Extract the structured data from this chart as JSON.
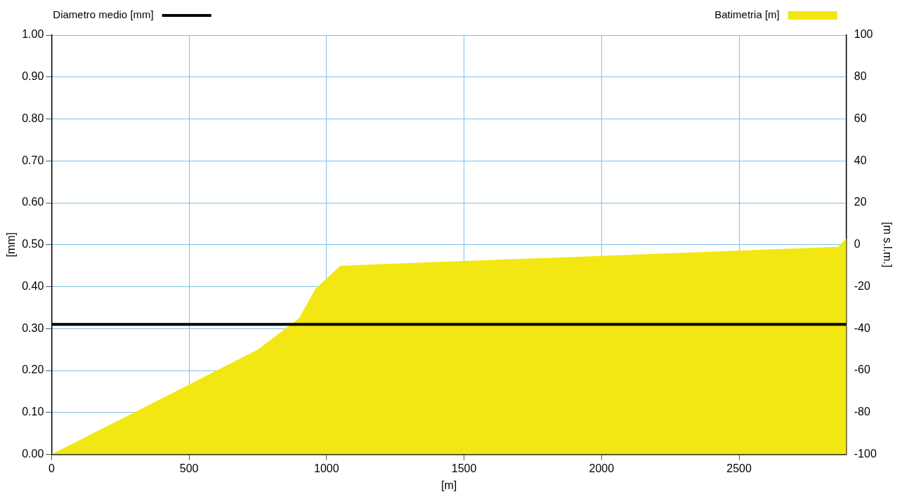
{
  "chart_data": {
    "type": "line",
    "xlabel": "[m]",
    "ylabel": "[mm]",
    "y2label": "[m s.l.m.]",
    "xlim": [
      0,
      2890
    ],
    "xticks": [
      0,
      500,
      1000,
      1500,
      2000,
      2500
    ],
    "ylim": [
      0,
      1
    ],
    "yticks": [
      {
        "value": 0,
        "label": "0.00"
      },
      {
        "value": 0.1,
        "label": "0.10"
      },
      {
        "value": 0.2,
        "label": "0.20"
      },
      {
        "value": 0.3,
        "label": "0.30"
      },
      {
        "value": 0.4,
        "label": "0.40"
      },
      {
        "value": 0.5,
        "label": "0.50"
      },
      {
        "value": 0.6,
        "label": "0.60"
      },
      {
        "value": 0.7,
        "label": "0.70"
      },
      {
        "value": 0.8,
        "label": "0.80"
      },
      {
        "value": 0.9,
        "label": "0.90"
      },
      {
        "value": 1,
        "label": "1.00"
      }
    ],
    "y2lim": [
      -100,
      100
    ],
    "y2ticks": [
      -100,
      -80,
      -60,
      -40,
      -20,
      0,
      20,
      40,
      60,
      80,
      100
    ],
    "grid": true,
    "legend": "top",
    "marker": "none",
    "series": [
      {
        "name": "Batimetria [m]",
        "type": "area",
        "axis": "y2",
        "color": "#f2e712",
        "x": [
          0,
          750,
          900,
          960,
          1050,
          2860,
          2890,
          2890
        ],
        "values": [
          -100,
          -50,
          -35,
          -21,
          -10,
          -1,
          3,
          -100
        ]
      },
      {
        "name": "Diametro medio [mm]",
        "type": "line",
        "color": "#000000",
        "x": [
          0,
          2890
        ],
        "values": [
          0.31,
          0.31
        ]
      }
    ]
  }
}
